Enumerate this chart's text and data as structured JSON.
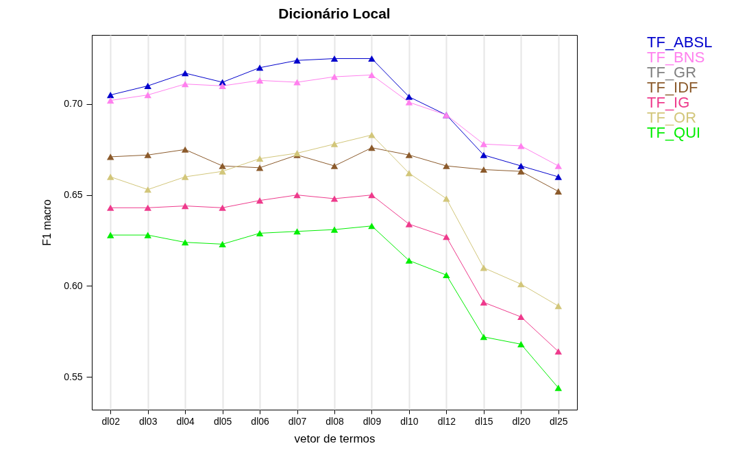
{
  "chart_data": {
    "type": "line",
    "title": "Dicionário Local",
    "xlabel": "vetor de termos",
    "ylabel": "F1 macro",
    "categories": [
      "dl02",
      "dl03",
      "dl04",
      "dl05",
      "dl06",
      "dl07",
      "dl08",
      "dl09",
      "dl10",
      "dl12",
      "dl15",
      "dl20",
      "dl25"
    ],
    "series": [
      {
        "name": "TF_ABSL",
        "color": "#0000cc",
        "values": [
          0.705,
          0.71,
          0.717,
          0.712,
          0.72,
          0.724,
          0.725,
          0.725,
          0.704,
          0.694,
          0.672,
          0.666,
          0.66
        ]
      },
      {
        "name": "TF_BNS",
        "color": "#ff80ee",
        "values": [
          0.702,
          0.705,
          0.711,
          0.71,
          0.713,
          0.712,
          0.715,
          0.716,
          0.701,
          0.694,
          0.678,
          0.677,
          0.666
        ]
      },
      {
        "name": "TF_GR",
        "color": "#808080",
        "values": [
          null,
          null,
          null,
          null,
          null,
          null,
          null,
          null,
          null,
          null,
          null,
          null,
          null
        ]
      },
      {
        "name": "TF_IDF",
        "color": "#8b5a2b",
        "values": [
          0.671,
          0.672,
          0.675,
          0.666,
          0.665,
          0.672,
          0.666,
          0.676,
          0.672,
          0.666,
          0.664,
          0.663,
          0.652
        ]
      },
      {
        "name": "TF_IG",
        "color": "#ee3a8c",
        "values": [
          0.643,
          0.643,
          0.644,
          0.643,
          0.647,
          0.65,
          0.648,
          0.65,
          0.634,
          0.627,
          0.591,
          0.583,
          0.564
        ]
      },
      {
        "name": "TF_OR",
        "color": "#d2c67a",
        "values": [
          0.66,
          0.653,
          0.66,
          0.663,
          0.67,
          0.673,
          0.678,
          0.683,
          0.662,
          0.648,
          0.61,
          0.601,
          0.589
        ]
      },
      {
        "name": "TF_QUI",
        "color": "#00ee00",
        "values": [
          0.628,
          0.628,
          0.624,
          0.623,
          0.629,
          0.63,
          0.631,
          0.633,
          0.614,
          0.606,
          0.572,
          0.568,
          0.544
        ]
      }
    ],
    "ylim": [
      0.532,
      0.738
    ],
    "yticks": [
      0.55,
      {
        "value": 0.6,
        "label": "0.60"
      },
      0.65,
      {
        "value": 0.7,
        "label": "0.70"
      }
    ],
    "grid": "x",
    "legend": "right",
    "marker": "triangle",
    "line_style": "solid"
  }
}
